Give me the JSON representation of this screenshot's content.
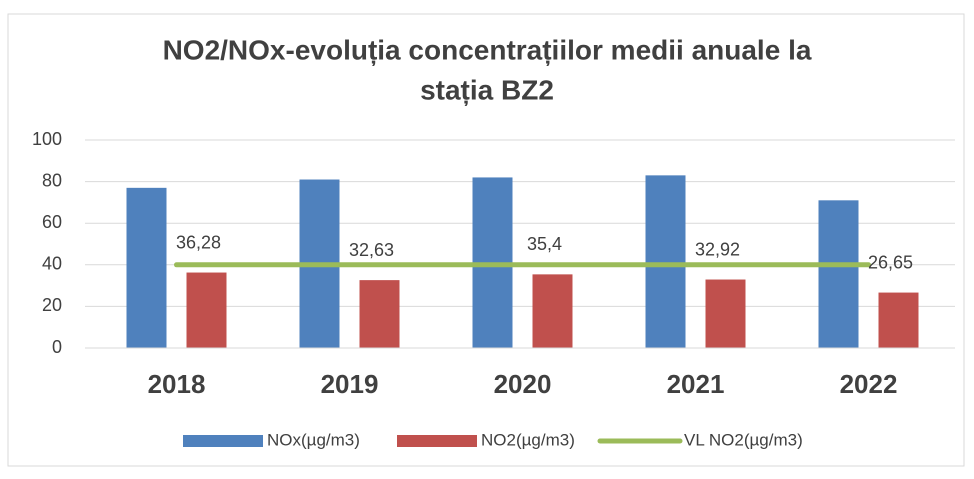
{
  "chart_data": {
    "type": "bar",
    "title": [
      "NO2/NOx-evoluția concentrațiilor medii anuale la",
      "stația BZ2"
    ],
    "categories": [
      "2018",
      "2019",
      "2020",
      "2021",
      "2022"
    ],
    "series": [
      {
        "name": "NOx(µg/m3)",
        "color": "#4f81bd",
        "type": "bar",
        "values": [
          77,
          81,
          82,
          83,
          71
        ]
      },
      {
        "name": "NO2(µg/m3)",
        "color": "#c0504d",
        "type": "bar",
        "values": [
          36.28,
          32.63,
          35.4,
          32.92,
          26.65
        ],
        "value_labels": [
          "36,28",
          "32,63",
          "35,4",
          "32,92",
          "26,65"
        ]
      },
      {
        "name": "VL NO2(µg/m3)",
        "color": "#9bbb59",
        "type": "line",
        "values": [
          40,
          40,
          40,
          40,
          40
        ]
      }
    ],
    "ylim": [
      0,
      100
    ],
    "yticks": [
      0,
      20,
      40,
      60,
      80,
      100
    ],
    "grid": true,
    "legend": "bottom"
  }
}
